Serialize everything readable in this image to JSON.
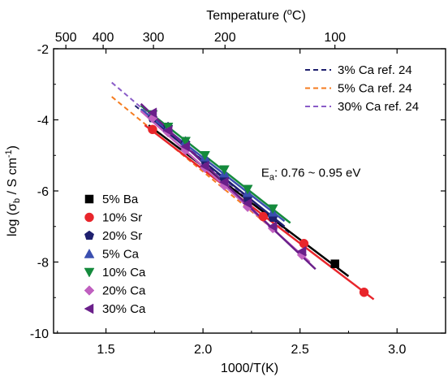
{
  "chart_data": {
    "type": "scatter",
    "x_axis": {
      "label": "1000/T(K)",
      "range": [
        1.23,
        3.25
      ],
      "ticks": [
        1.5,
        2.0,
        2.5,
        3.0
      ],
      "tick_labels": [
        "1.5",
        "2.0",
        "2.5",
        "3.0"
      ]
    },
    "y_axis": {
      "label_main": "log (σ",
      "label_sub": "b",
      "label_mid": " / S cm",
      "label_sup": "-1",
      "label_end": ")",
      "range": [
        -10,
        -2
      ],
      "ticks": [
        -10,
        -8,
        -6,
        -4,
        -2
      ],
      "tick_labels": [
        "-10",
        "-8",
        "-6",
        "-4",
        "-2"
      ]
    },
    "top_axis": {
      "label_main": "Temperature (",
      "label_sup": "o",
      "label_end": "C)",
      "ticks_celsius": [
        500,
        400,
        300,
        200,
        100
      ],
      "tick_labels": [
        "500",
        "400",
        "300",
        "200",
        "100"
      ]
    },
    "annotation": {
      "prefix": "E",
      "sub": "a",
      "text": ": 0.76 ~ 0.95 eV",
      "x": 2.3,
      "y": -5.6
    },
    "series": [
      {
        "name": "5% Ba",
        "marker": "square",
        "color": "#000000",
        "points": [
          [
            2.68,
            -8.05
          ]
        ],
        "fit": [
          [
            1.72,
            -4.15
          ],
          [
            2.75,
            -8.4
          ]
        ]
      },
      {
        "name": "10% Sr",
        "marker": "circle",
        "color": "#e8252b",
        "points": [
          [
            1.74,
            -4.27
          ],
          [
            2.31,
            -6.72
          ],
          [
            2.52,
            -7.48
          ],
          [
            2.83,
            -8.85
          ]
        ],
        "fit": [
          [
            1.7,
            -4.15
          ],
          [
            2.88,
            -9.05
          ]
        ]
      },
      {
        "name": "20% Sr",
        "marker": "pentagon",
        "color": "#1e1f6e",
        "points": [
          [
            1.74,
            -3.95
          ],
          [
            1.82,
            -4.2
          ],
          [
            1.91,
            -4.65
          ],
          [
            2.01,
            -5.15
          ],
          [
            2.11,
            -5.65
          ],
          [
            2.23,
            -6.2
          ],
          [
            2.36,
            -6.75
          ]
        ],
        "fit": [
          [
            1.68,
            -3.75
          ],
          [
            2.42,
            -7.0
          ]
        ]
      },
      {
        "name": "5% Ca",
        "marker": "triangle-up",
        "color": "#3b4fb0",
        "points": [
          [
            1.82,
            -4.22
          ],
          [
            1.91,
            -4.6
          ],
          [
            2.01,
            -5.05
          ],
          [
            2.11,
            -5.5
          ],
          [
            2.23,
            -6.05
          ],
          [
            2.36,
            -6.6
          ]
        ],
        "fit": [
          [
            1.68,
            -3.7
          ],
          [
            2.42,
            -6.85
          ]
        ]
      },
      {
        "name": "10% Ca",
        "marker": "triangle-down",
        "color": "#148a3c",
        "points": [
          [
            1.74,
            -3.85
          ],
          [
            1.82,
            -4.2
          ],
          [
            1.91,
            -4.6
          ],
          [
            2.01,
            -5.0
          ],
          [
            2.11,
            -5.4
          ],
          [
            2.23,
            -5.95
          ],
          [
            2.36,
            -6.5
          ]
        ],
        "fit": [
          [
            1.68,
            -3.6
          ],
          [
            2.45,
            -6.9
          ]
        ]
      },
      {
        "name": "20% Ca",
        "marker": "diamond",
        "color": "#c060c0",
        "points": [
          [
            1.74,
            -3.95
          ],
          [
            1.82,
            -4.35
          ],
          [
            1.91,
            -4.85
          ],
          [
            2.01,
            -5.35
          ],
          [
            2.11,
            -5.85
          ],
          [
            2.23,
            -6.45
          ],
          [
            2.36,
            -7.05
          ],
          [
            2.51,
            -7.8
          ]
        ],
        "fit": [
          [
            1.68,
            -3.75
          ],
          [
            2.55,
            -8.0
          ]
        ]
      },
      {
        "name": "30% Ca",
        "marker": "triangle-left",
        "color": "#6a1f8a",
        "points": [
          [
            1.74,
            -3.8
          ],
          [
            1.82,
            -4.3
          ],
          [
            1.91,
            -4.75
          ],
          [
            2.01,
            -5.3
          ],
          [
            2.11,
            -5.75
          ],
          [
            2.23,
            -6.35
          ],
          [
            2.36,
            -7.0
          ],
          [
            2.51,
            -7.7
          ]
        ],
        "fit": [
          [
            1.68,
            -3.55
          ],
          [
            2.58,
            -8.2
          ]
        ]
      }
    ],
    "reference_lines": [
      {
        "name": "3% Ca ref. 24",
        "color": "#1e1f6e",
        "fit": [
          [
            1.65,
            -3.6
          ],
          [
            2.45,
            -7.2
          ]
        ]
      },
      {
        "name": "5% Ca ref. 24",
        "color": "#f57c20",
        "fit": [
          [
            1.53,
            -3.35
          ],
          [
            2.4,
            -7.25
          ]
        ]
      },
      {
        "name": "30% Ca ref. 24",
        "color": "#8a5cc8",
        "fit": [
          [
            1.53,
            -2.95
          ],
          [
            2.4,
            -7.0
          ]
        ]
      }
    ]
  }
}
